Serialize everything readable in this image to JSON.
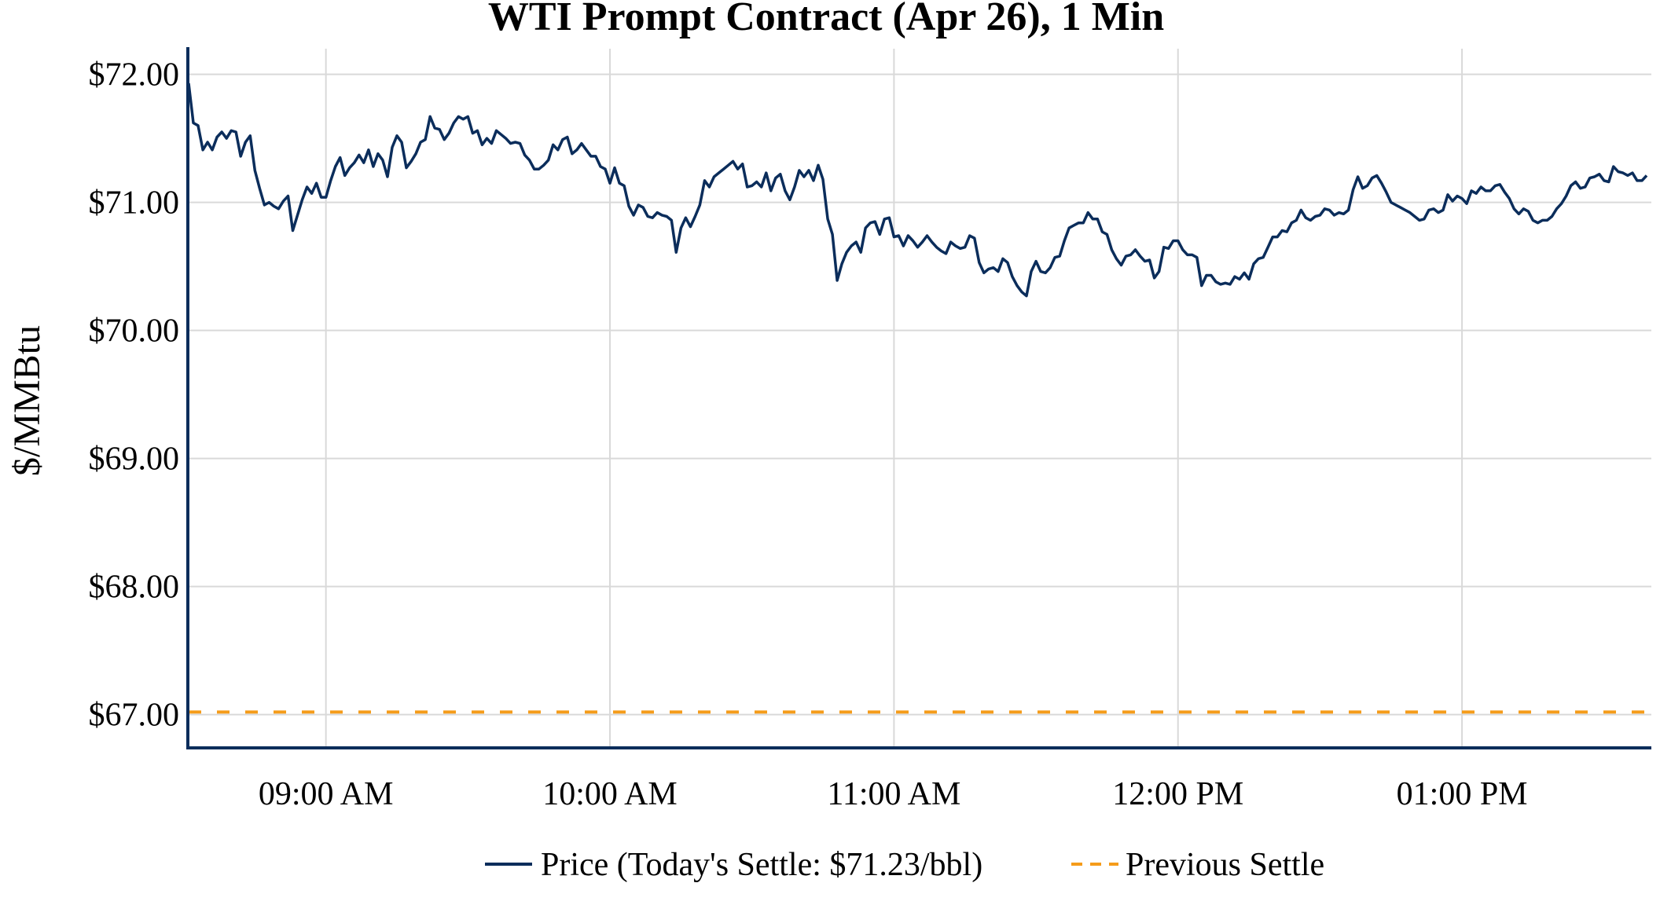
{
  "chart_data": {
    "type": "line",
    "title": "WTI Prompt Contract (Apr 26), 1 Min",
    "xlabel": "",
    "ylabel": "$/MMBtu",
    "x_start": "08:31",
    "x_interval_minutes": 1,
    "x_ticks": [
      "09:00",
      "10:00",
      "11:00",
      "12:00",
      "13:00"
    ],
    "x_tick_labels": [
      "09:00 AM",
      "10:00 AM",
      "11:00 AM",
      "12:00 PM",
      "01:00 PM"
    ],
    "xlim": [
      "08:31",
      "13:40"
    ],
    "y_ticks": [
      67,
      68,
      69,
      70,
      71,
      72
    ],
    "y_tick_labels": [
      "$67.00",
      "$68.00",
      "$69.00",
      "$70.00",
      "$71.00",
      "$72.00"
    ],
    "ylim": [
      66.74,
      72.2
    ],
    "grid": true,
    "legend_placement": "bottom-center",
    "colors": {
      "price": "#0b2d5b",
      "previous_settle": "#f59c1a",
      "grid": "#d9d9d9",
      "axis": "#0b2d5b"
    },
    "series": [
      {
        "name": "Price (Today's Settle: $71.23/bbl)",
        "style": "solid",
        "values": [
          71.93,
          71.62,
          71.6,
          71.41,
          71.47,
          71.41,
          71.51,
          71.55,
          71.5,
          71.56,
          71.55,
          71.36,
          71.47,
          71.52,
          71.25,
          71.11,
          70.98,
          71.0,
          70.97,
          70.95,
          71.01,
          71.05,
          70.78,
          70.9,
          71.02,
          71.12,
          71.07,
          71.15,
          71.04,
          71.04,
          71.17,
          71.28,
          71.35,
          71.21,
          71.27,
          71.31,
          71.37,
          71.31,
          71.41,
          71.28,
          71.38,
          71.33,
          71.2,
          71.43,
          71.52,
          71.47,
          71.27,
          71.32,
          71.38,
          71.47,
          71.49,
          71.67,
          71.58,
          71.57,
          71.49,
          71.54,
          71.62,
          71.67,
          71.65,
          71.67,
          71.54,
          71.56,
          71.45,
          71.5,
          71.46,
          71.56,
          71.53,
          71.5,
          71.46,
          71.47,
          71.46,
          71.37,
          71.33,
          71.26,
          71.26,
          71.29,
          71.33,
          71.45,
          71.41,
          71.49,
          71.51,
          71.38,
          71.41,
          71.46,
          71.41,
          71.36,
          71.36,
          71.28,
          71.26,
          71.15,
          71.27,
          71.15,
          71.13,
          70.97,
          70.9,
          70.98,
          70.96,
          70.89,
          70.88,
          70.92,
          70.9,
          70.89,
          70.86,
          70.61,
          70.8,
          70.88,
          70.81,
          70.89,
          70.98,
          71.17,
          71.12,
          71.2,
          71.23,
          71.26,
          71.29,
          71.32,
          71.26,
          71.3,
          71.12,
          71.13,
          71.16,
          71.12,
          71.23,
          71.09,
          71.19,
          71.22,
          71.09,
          71.02,
          71.12,
          71.25,
          71.2,
          71.25,
          71.17,
          71.29,
          71.18,
          70.87,
          70.75,
          70.39,
          70.52,
          70.61,
          70.66,
          70.69,
          70.61,
          70.8,
          70.84,
          70.85,
          70.75,
          70.87,
          70.88,
          70.73,
          70.74,
          70.66,
          70.74,
          70.7,
          70.65,
          70.69,
          70.74,
          70.69,
          70.65,
          70.62,
          70.6,
          70.69,
          70.66,
          70.64,
          70.65,
          70.74,
          70.72,
          70.53,
          70.45,
          70.48,
          70.49,
          70.46,
          70.56,
          70.53,
          70.42,
          70.35,
          70.3,
          70.27,
          70.46,
          70.54,
          70.46,
          70.45,
          70.49,
          70.57,
          70.58,
          70.7,
          70.8,
          70.82,
          70.84,
          70.84,
          70.92,
          70.87,
          70.87,
          70.77,
          70.75,
          70.63,
          70.56,
          70.51,
          70.58,
          70.59,
          70.63,
          70.58,
          70.54,
          70.55,
          70.41,
          70.46,
          70.65,
          70.64,
          70.7,
          70.7,
          70.63,
          70.59,
          70.59,
          70.57,
          70.35,
          70.43,
          70.43,
          70.38,
          70.36,
          70.37,
          70.36,
          70.42,
          70.4,
          70.45,
          70.4,
          70.52,
          70.56,
          70.57,
          70.65,
          70.73,
          70.73,
          70.78,
          70.77,
          70.84,
          70.86,
          70.94,
          70.88,
          70.86,
          70.89,
          70.9,
          70.95,
          70.94,
          70.9,
          70.92,
          70.91,
          70.94,
          71.1,
          71.2,
          71.11,
          71.13,
          71.19,
          71.21,
          71.15,
          71.08,
          71.0,
          70.98,
          70.96,
          70.94,
          70.92,
          70.89,
          70.86,
          70.87,
          70.94,
          70.95,
          70.92,
          70.94,
          71.06,
          71.01,
          71.05,
          71.03,
          70.99,
          71.09,
          71.07,
          71.12,
          71.09,
          71.09,
          71.13,
          71.14,
          71.08,
          71.03,
          70.95,
          70.91,
          70.95,
          70.93,
          70.86,
          70.84,
          70.86,
          70.86,
          70.89,
          70.95,
          70.99,
          71.05,
          71.13,
          71.16,
          71.11,
          71.12,
          71.19,
          71.2,
          71.22,
          71.17,
          71.16,
          71.28,
          71.24,
          71.23,
          71.21,
          71.23,
          71.17,
          71.17,
          71.21
        ]
      },
      {
        "name": "Previous Settle",
        "style": "dashed",
        "constant": 67.02
      }
    ]
  }
}
